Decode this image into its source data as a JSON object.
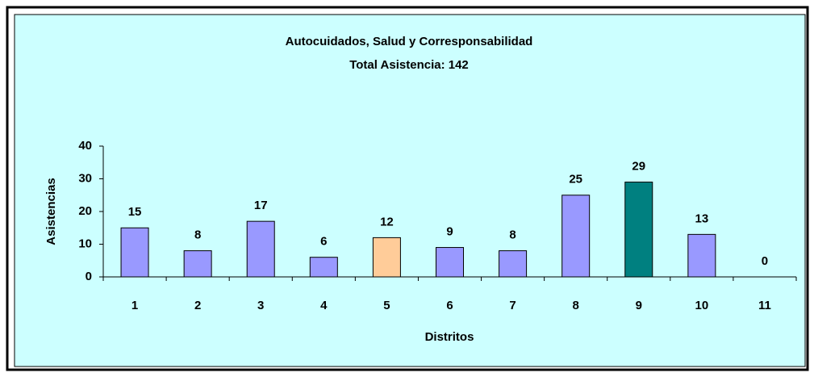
{
  "chart_data": {
    "type": "bar",
    "title": "Autocuidados,  Salud y Corresponsabilidad",
    "subtitle": "Total Asistencia: 142",
    "x_label": "Distritos",
    "y_label": "Asistencias",
    "categories": [
      "1",
      "2",
      "3",
      "4",
      "5",
      "6",
      "7",
      "8",
      "9",
      "10",
      "11"
    ],
    "values": [
      15,
      8,
      17,
      6,
      12,
      9,
      8,
      25,
      29,
      13,
      0
    ],
    "colors": [
      "#9999ff",
      "#9999ff",
      "#9999ff",
      "#9999ff",
      "#ffcc99",
      "#9999ff",
      "#9999ff",
      "#9999ff",
      "#008080",
      "#9999ff",
      "#9999ff"
    ],
    "ylim": [
      0,
      40
    ],
    "yticks": [
      0,
      10,
      20,
      30,
      40
    ],
    "grid": false
  }
}
